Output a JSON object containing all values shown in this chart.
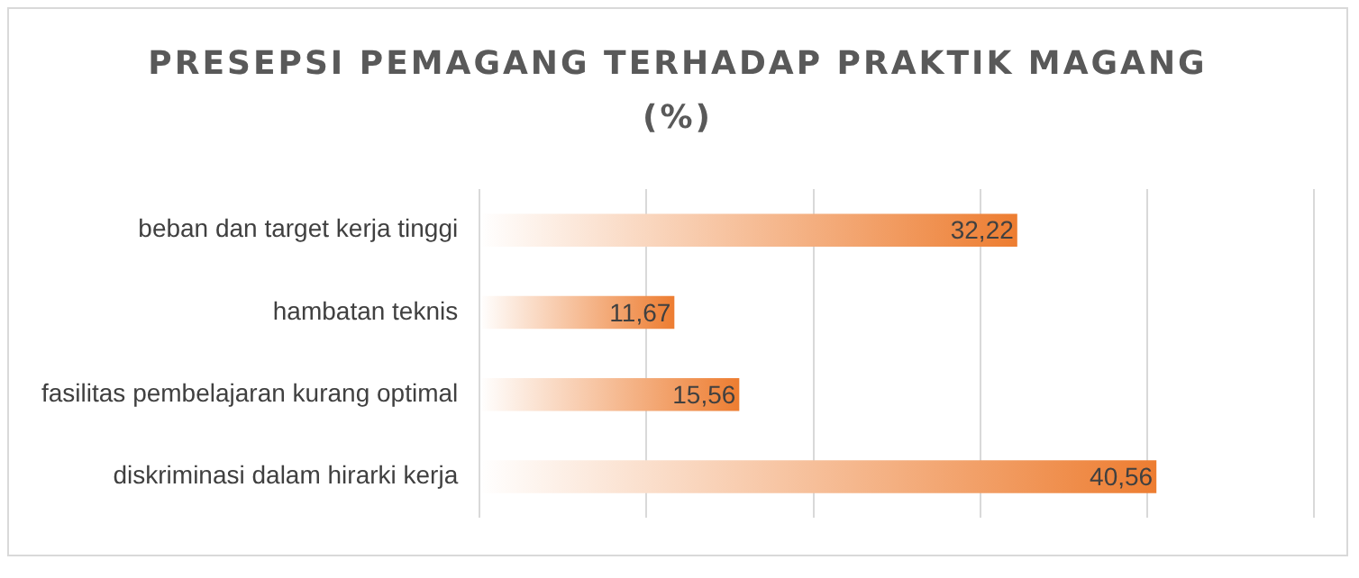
{
  "chart_data": {
    "type": "bar",
    "orientation": "horizontal",
    "title": "PRESEPSI PEMAGANG TERHADAP PRAKTIK MAGANG (%)",
    "categories": [
      "beban dan target kerja tinggi",
      "hambatan teknis",
      "fasilitas pembelajaran kurang optimal",
      "diskriminasi dalam hirarki kerja"
    ],
    "values": [
      32.22,
      11.67,
      15.56,
      40.56
    ],
    "value_labels": [
      "32,22",
      "11,67",
      "15,56",
      "40,56"
    ],
    "color": "#ed7d31",
    "xlim": [
      0,
      50
    ],
    "xticks": [
      {
        "value": 0,
        "label": null
      },
      {
        "value": 10,
        "label": null
      },
      {
        "value": 20,
        "label": null
      },
      {
        "value": 30,
        "label": null
      },
      {
        "value": 40,
        "label": null
      },
      {
        "value": 50,
        "label": null
      }
    ],
    "grid": "x",
    "tick_labels": "y",
    "legend": false
  }
}
